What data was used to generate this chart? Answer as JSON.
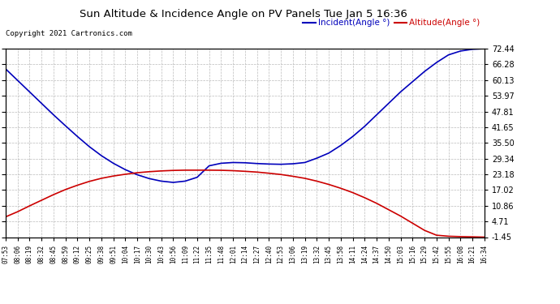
{
  "title": "Sun Altitude & Incidence Angle on PV Panels Tue Jan 5 16:36",
  "copyright": "Copyright 2021 Cartronics.com",
  "legend_incident": "Incident(Angle °)",
  "legend_altitude": "Altitude(Angle °)",
  "incident_color": "#0000bb",
  "altitude_color": "#cc0000",
  "background_color": "#ffffff",
  "grid_color": "#bbbbbb",
  "yticks": [
    -1.45,
    4.71,
    10.86,
    17.02,
    23.18,
    29.34,
    35.5,
    41.65,
    47.81,
    53.97,
    60.13,
    66.28,
    72.44
  ],
  "xtick_labels": [
    "07:53",
    "08:06",
    "08:19",
    "08:32",
    "08:45",
    "08:59",
    "09:12",
    "09:25",
    "09:38",
    "09:51",
    "10:04",
    "10:17",
    "10:30",
    "10:43",
    "10:56",
    "11:09",
    "11:22",
    "11:35",
    "11:48",
    "12:01",
    "12:14",
    "12:27",
    "12:40",
    "12:53",
    "13:06",
    "13:19",
    "13:32",
    "13:45",
    "13:58",
    "14:11",
    "14:24",
    "14:37",
    "14:50",
    "15:03",
    "15:16",
    "15:29",
    "15:42",
    "15:55",
    "16:08",
    "16:21",
    "16:34"
  ],
  "ymin": -1.45,
  "ymax": 72.44,
  "incident_y": [
    64.5,
    60.0,
    55.5,
    51.0,
    46.5,
    42.2,
    38.0,
    34.0,
    30.5,
    27.5,
    25.0,
    23.0,
    21.5,
    20.5,
    20.0,
    20.5,
    22.0,
    26.5,
    27.5,
    27.8,
    27.7,
    27.4,
    27.2,
    27.1,
    27.3,
    27.8,
    29.5,
    31.5,
    34.5,
    38.0,
    42.0,
    46.5,
    51.0,
    55.5,
    59.5,
    63.5,
    67.0,
    70.0,
    71.5,
    72.2,
    72.44
  ],
  "altitude_y": [
    6.5,
    8.5,
    10.8,
    13.0,
    15.2,
    17.2,
    18.9,
    20.4,
    21.6,
    22.5,
    23.2,
    23.8,
    24.2,
    24.5,
    24.7,
    24.8,
    24.8,
    24.8,
    24.75,
    24.6,
    24.35,
    24.05,
    23.6,
    23.1,
    22.4,
    21.6,
    20.5,
    19.2,
    17.7,
    16.0,
    14.0,
    11.8,
    9.3,
    6.8,
    4.0,
    1.2,
    -0.7,
    -1.1,
    -1.25,
    -1.35,
    -1.45
  ]
}
